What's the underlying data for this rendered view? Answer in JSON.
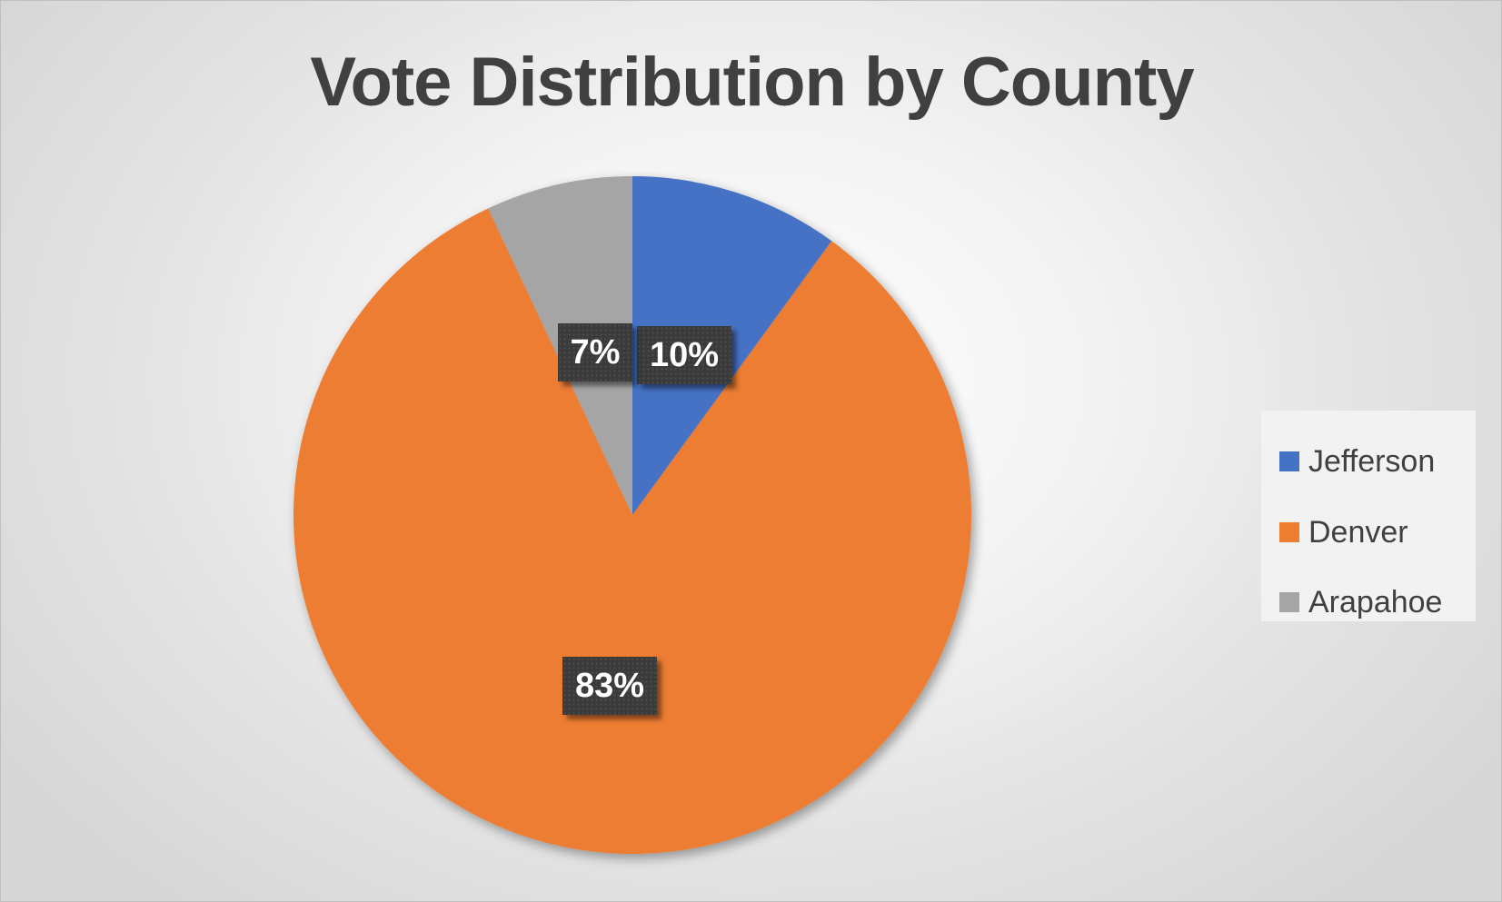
{
  "chart_data": {
    "type": "pie",
    "title": "Vote Distribution by County",
    "categories": [
      "Jefferson",
      "Denver",
      "Arapahoe"
    ],
    "values": [
      10,
      83,
      7
    ],
    "labels": [
      "10%",
      "83%",
      "7%"
    ],
    "colors": [
      "#4472c4",
      "#ed7d31",
      "#a5a5a5"
    ],
    "legend_position": "right",
    "start_angle_deg": 0,
    "direction": "clockwise"
  }
}
